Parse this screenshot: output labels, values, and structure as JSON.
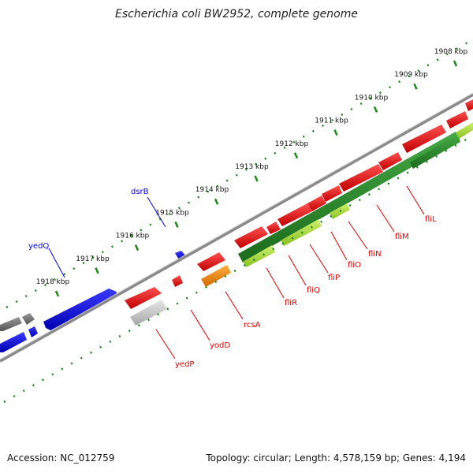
{
  "title": "Escherichia coli BW2952, complete genome",
  "footer": {
    "accession": "Accession: NC_012759",
    "topology": "Topology: circular; Length: 4,578,159 bp; Genes: 4,194"
  },
  "colors": {
    "forward": "#e00000",
    "reverse_blue": "#0000e0",
    "operon_green": "#2a8a2a",
    "light_green": "#a8e040",
    "orange": "#ff8c00",
    "gray": "#777777",
    "light_gray": "#cccccc",
    "tick_green": "#1a8a1a",
    "backbone": "#8a8a8a"
  },
  "ticks": [
    {
      "label": "1908 kbp"
    },
    {
      "label": "1909 kbp"
    },
    {
      "label": "1910 kbp"
    },
    {
      "label": "1911 kbp"
    },
    {
      "label": "1912 kbp"
    },
    {
      "label": "1913 kbp"
    },
    {
      "label": "1914 kbp"
    },
    {
      "label": "1915 kbp"
    },
    {
      "label": "1916 kbp"
    },
    {
      "label": "1917 kbp"
    },
    {
      "label": "1918 kbp"
    }
  ],
  "top_labels": [
    {
      "text": "dsrB",
      "color": "#0000e0"
    },
    {
      "text": "yedQ",
      "color": "#0000e0"
    }
  ],
  "bottom_labels": [
    {
      "text": "yedP",
      "color": "#e00000"
    },
    {
      "text": "yodD",
      "color": "#e00000"
    },
    {
      "text": "rcsA",
      "color": "#e00000"
    },
    {
      "text": "fliR",
      "color": "#e00000"
    },
    {
      "text": "fliQ",
      "color": "#e00000"
    },
    {
      "text": "fliP",
      "color": "#e00000"
    },
    {
      "text": "fliO",
      "color": "#e00000"
    },
    {
      "text": "fliN",
      "color": "#e00000"
    },
    {
      "text": "fliM",
      "color": "#e00000"
    },
    {
      "text": "fliL",
      "color": "#e00000"
    }
  ]
}
